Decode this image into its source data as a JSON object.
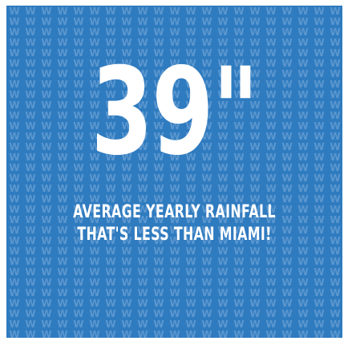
{
  "graphic": {
    "headline_value": "39\"",
    "caption_line1": "AVERAGE YEARLY RAINFALL",
    "caption_line2": "THAT'S LESS THAN MIAMI!",
    "pattern_glyph": "W",
    "colors": {
      "background": "#2f7bbf",
      "pattern": "#5b97cf",
      "text": "#ffffff",
      "frame": "#ffffff"
    }
  }
}
